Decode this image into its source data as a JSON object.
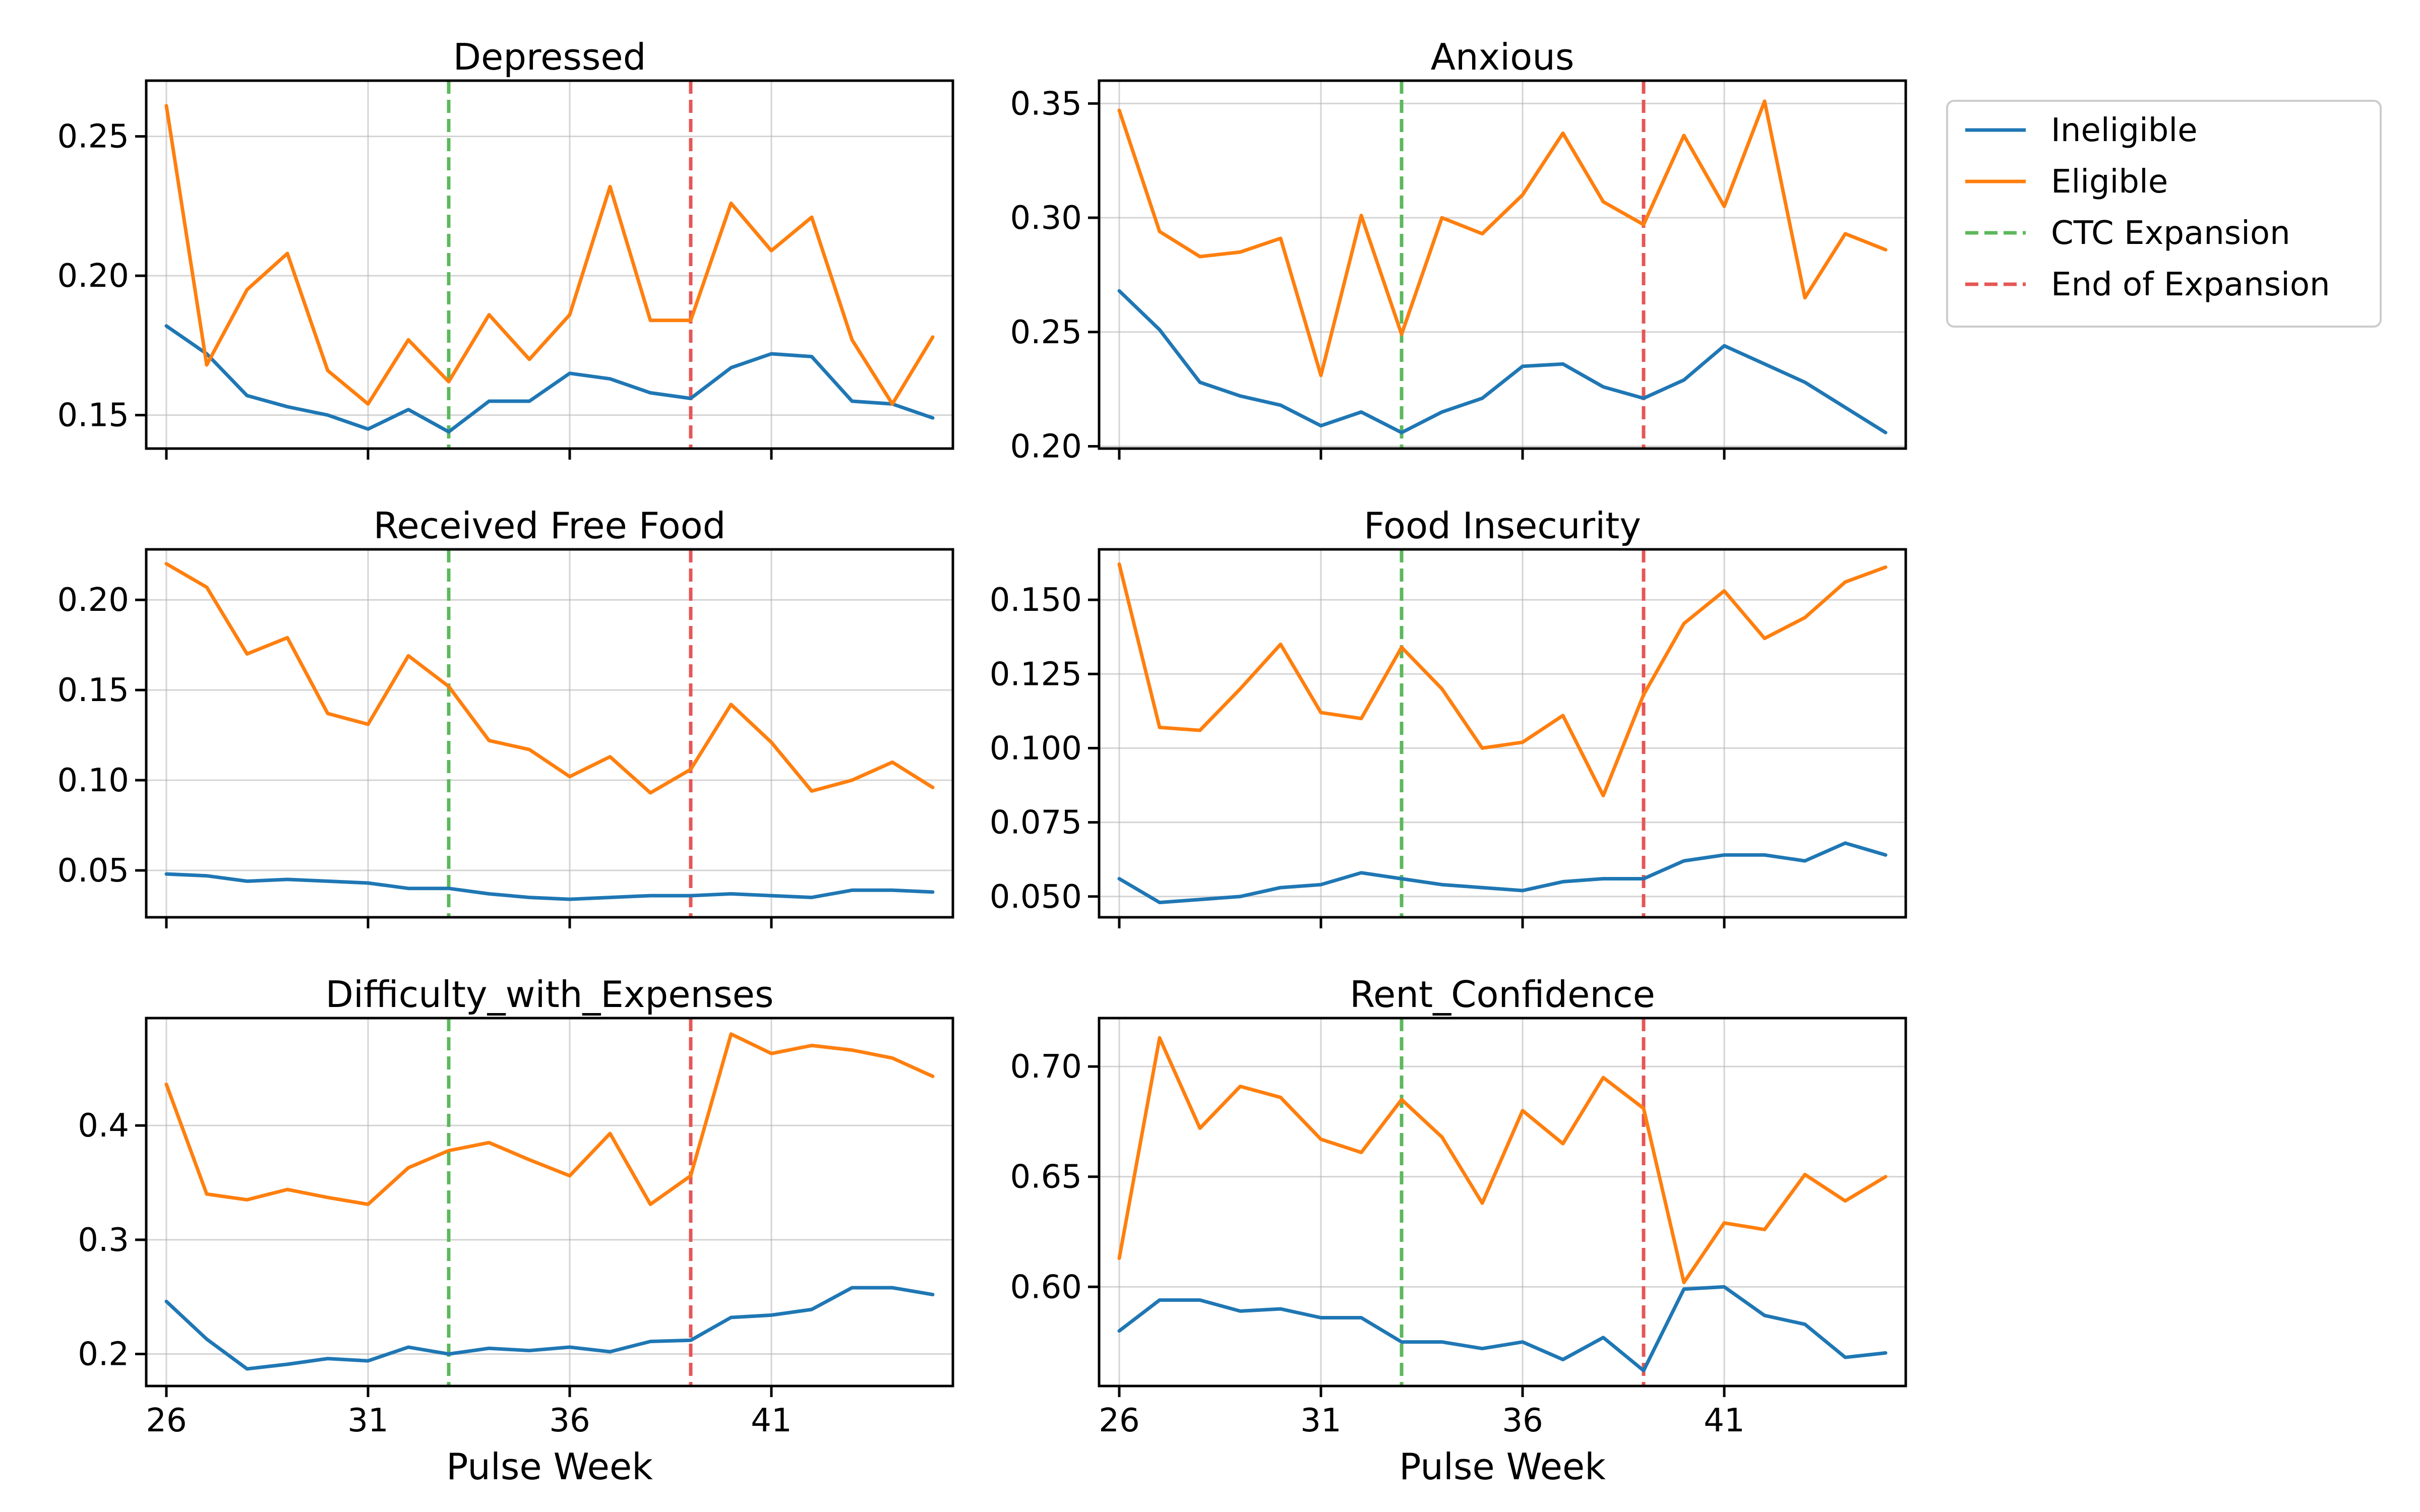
{
  "chart_data": {
    "type": "line",
    "xlabel": "Pulse Week",
    "x": [
      26,
      27,
      28,
      29,
      30,
      31,
      32,
      33,
      34,
      35,
      36,
      37,
      38,
      39,
      40,
      41,
      42,
      43,
      44,
      45
    ],
    "xticks": [
      26,
      31,
      36,
      41
    ],
    "xlim": [
      25.5,
      45.5
    ],
    "grid": true,
    "legend_position": "right",
    "legend": [
      {
        "label": "Ineligible",
        "color": "#1f77b4",
        "style": "solid"
      },
      {
        "label": "Eligible",
        "color": "#ff7f0e",
        "style": "solid"
      },
      {
        "label": "CTC Expansion",
        "color": "#5cb85c",
        "style": "dashed"
      },
      {
        "label": "End of Expansion",
        "color": "#e45756",
        "style": "dashed"
      }
    ],
    "vlines": [
      {
        "label": "CTC Expansion",
        "x": 33,
        "color": "#5cb85c"
      },
      {
        "label": "End of Expansion",
        "x": 39,
        "color": "#e45756"
      }
    ],
    "panels": [
      {
        "title": "Depressed",
        "ylim": [
          0.138,
          0.27
        ],
        "yticks": [
          0.15,
          0.2,
          0.25
        ],
        "ytick_labels": [
          "0.15",
          "0.20",
          "0.25"
        ],
        "show_xticklabels": false,
        "series": [
          {
            "name": "Ineligible",
            "color": "#1f77b4",
            "values": [
              0.182,
              0.172,
              0.157,
              0.153,
              0.15,
              0.145,
              0.152,
              0.144,
              0.155,
              0.155,
              0.165,
              0.163,
              0.158,
              0.156,
              0.167,
              0.172,
              0.171,
              0.155,
              0.154,
              0.149
            ]
          },
          {
            "name": "Eligible",
            "color": "#ff7f0e",
            "values": [
              0.261,
              0.168,
              0.195,
              0.208,
              0.166,
              0.154,
              0.177,
              0.162,
              0.186,
              0.17,
              0.186,
              0.232,
              0.184,
              0.184,
              0.226,
              0.209,
              0.221,
              0.177,
              0.154,
              0.178
            ]
          }
        ]
      },
      {
        "title": "Anxious",
        "ylim": [
          0.199,
          0.36
        ],
        "yticks": [
          0.2,
          0.25,
          0.3,
          0.35
        ],
        "ytick_labels": [
          "0.20",
          "0.25",
          "0.30",
          "0.35"
        ],
        "show_xticklabels": false,
        "series": [
          {
            "name": "Ineligible",
            "color": "#1f77b4",
            "values": [
              0.268,
              0.251,
              0.228,
              0.222,
              0.218,
              0.209,
              0.215,
              0.206,
              0.215,
              0.221,
              0.235,
              0.236,
              0.226,
              0.221,
              0.229,
              0.244,
              0.236,
              0.228,
              0.217,
              0.206
            ]
          },
          {
            "name": "Eligible",
            "color": "#ff7f0e",
            "values": [
              0.347,
              0.294,
              0.283,
              0.285,
              0.291,
              0.231,
              0.301,
              0.249,
              0.3,
              0.293,
              0.31,
              0.337,
              0.307,
              0.297,
              0.336,
              0.305,
              0.351,
              0.265,
              0.293,
              0.286
            ]
          }
        ]
      },
      {
        "title": "Received Free Food",
        "ylim": [
          0.024,
          0.228
        ],
        "yticks": [
          0.05,
          0.1,
          0.15,
          0.2
        ],
        "ytick_labels": [
          "0.05",
          "0.10",
          "0.15",
          "0.20"
        ],
        "show_xticklabels": false,
        "series": [
          {
            "name": "Ineligible",
            "color": "#1f77b4",
            "values": [
              0.048,
              0.047,
              0.044,
              0.045,
              0.044,
              0.043,
              0.04,
              0.04,
              0.037,
              0.035,
              0.034,
              0.035,
              0.036,
              0.036,
              0.037,
              0.036,
              0.035,
              0.039,
              0.039,
              0.038
            ]
          },
          {
            "name": "Eligible",
            "color": "#ff7f0e",
            "values": [
              0.22,
              0.207,
              0.17,
              0.179,
              0.137,
              0.131,
              0.169,
              0.152,
              0.122,
              0.117,
              0.102,
              0.113,
              0.093,
              0.106,
              0.142,
              0.121,
              0.094,
              0.1,
              0.11,
              0.096
            ]
          }
        ]
      },
      {
        "title": "Food Insecurity",
        "ylim": [
          0.043,
          0.167
        ],
        "yticks": [
          0.05,
          0.075,
          0.1,
          0.125,
          0.15
        ],
        "ytick_labels": [
          "0.050",
          "0.075",
          "0.100",
          "0.125",
          "0.150"
        ],
        "show_xticklabels": false,
        "series": [
          {
            "name": "Ineligible",
            "color": "#1f77b4",
            "values": [
              0.056,
              0.048,
              0.049,
              0.05,
              0.053,
              0.054,
              0.058,
              0.056,
              0.054,
              0.053,
              0.052,
              0.055,
              0.056,
              0.056,
              0.062,
              0.064,
              0.064,
              0.062,
              0.068,
              0.064
            ]
          },
          {
            "name": "Eligible",
            "color": "#ff7f0e",
            "values": [
              0.162,
              0.107,
              0.106,
              0.12,
              0.135,
              0.112,
              0.11,
              0.134,
              0.12,
              0.1,
              0.102,
              0.111,
              0.084,
              0.118,
              0.142,
              0.153,
              0.137,
              0.144,
              0.156,
              0.161
            ]
          }
        ]
      },
      {
        "title": "Difficulty_with_Expenses",
        "ylim": [
          0.172,
          0.494
        ],
        "yticks": [
          0.2,
          0.3,
          0.4
        ],
        "ytick_labels": [
          "0.2",
          "0.3",
          "0.4"
        ],
        "show_xticklabels": true,
        "series": [
          {
            "name": "Ineligible",
            "color": "#1f77b4",
            "values": [
              0.246,
              0.213,
              0.187,
              0.191,
              0.196,
              0.194,
              0.206,
              0.2,
              0.205,
              0.203,
              0.206,
              0.202,
              0.211,
              0.212,
              0.232,
              0.234,
              0.239,
              0.258,
              0.258,
              0.252
            ]
          },
          {
            "name": "Eligible",
            "color": "#ff7f0e",
            "values": [
              0.436,
              0.34,
              0.335,
              0.344,
              0.337,
              0.331,
              0.363,
              0.378,
              0.385,
              0.37,
              0.356,
              0.393,
              0.331,
              0.356,
              0.48,
              0.463,
              0.47,
              0.466,
              0.459,
              0.443
            ]
          }
        ]
      },
      {
        "title": "Rent_Confidence",
        "ylim": [
          0.555,
          0.722
        ],
        "yticks": [
          0.6,
          0.65,
          0.7
        ],
        "ytick_labels": [
          "0.60",
          "0.65",
          "0.70"
        ],
        "show_xticklabels": true,
        "series": [
          {
            "name": "Ineligible",
            "color": "#1f77b4",
            "values": [
              0.58,
              0.594,
              0.594,
              0.589,
              0.59,
              0.586,
              0.586,
              0.575,
              0.575,
              0.572,
              0.575,
              0.567,
              0.577,
              0.562,
              0.599,
              0.6,
              0.587,
              0.583,
              0.568,
              0.57
            ]
          },
          {
            "name": "Eligible",
            "color": "#ff7f0e",
            "values": [
              0.613,
              0.713,
              0.672,
              0.691,
              0.686,
              0.667,
              0.661,
              0.685,
              0.668,
              0.638,
              0.68,
              0.665,
              0.695,
              0.681,
              0.602,
              0.629,
              0.626,
              0.651,
              0.639,
              0.65
            ]
          }
        ]
      }
    ]
  }
}
